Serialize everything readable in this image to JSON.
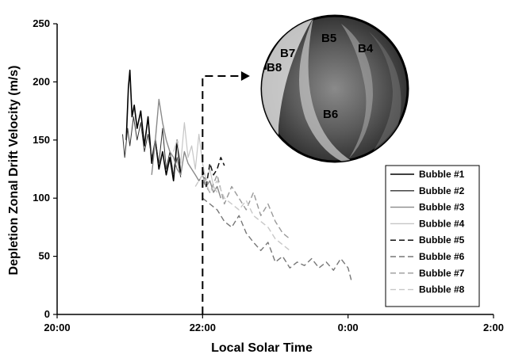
{
  "chart_data": {
    "type": "line",
    "title": "",
    "xlabel": "Local Solar Time",
    "ylabel": "Depletion Zonal Drift Velocity (m/s)",
    "x_unit": "hours",
    "xlim": [
      20,
      26
    ],
    "ylim": [
      0,
      250
    ],
    "x_ticks": [
      {
        "value": 20,
        "label": "20:00"
      },
      {
        "value": 22,
        "label": "22:00"
      },
      {
        "value": 24,
        "label": "0:00"
      },
      {
        "value": 26,
        "label": "2:00"
      }
    ],
    "y_ticks": [
      0,
      50,
      100,
      150,
      200,
      250
    ],
    "legend_position": "right",
    "grid": false,
    "series": [
      {
        "name": "Bubble #1",
        "color": "#000000",
        "dash": "solid",
        "width": 1.6,
        "x": [
          20.95,
          20.98,
          21.0,
          21.03,
          21.06,
          21.1,
          21.15,
          21.2,
          21.25,
          21.3,
          21.35,
          21.4,
          21.45,
          21.5,
          21.55,
          21.6,
          21.65,
          21.7
        ],
        "y": [
          150,
          195,
          210,
          170,
          180,
          160,
          175,
          145,
          170,
          130,
          150,
          125,
          140,
          120,
          135,
          115,
          150,
          120
        ]
      },
      {
        "name": "Bubble #2",
        "color": "#333333",
        "dash": "solid",
        "width": 1.0,
        "x": [
          20.9,
          20.93,
          20.97,
          21.0,
          21.05,
          21.1,
          21.15,
          21.2,
          21.25,
          21.3,
          21.35,
          21.4,
          21.45,
          21.5,
          21.55,
          21.6,
          21.65,
          21.7
        ],
        "y": [
          155,
          135,
          160,
          145,
          170,
          150,
          165,
          140,
          155,
          135,
          150,
          130,
          160,
          125,
          140,
          120,
          135,
          118
        ]
      },
      {
        "name": "Bubble #3",
        "color": "#8a8a8a",
        "dash": "solid",
        "width": 1.4,
        "x": [
          21.3,
          21.35,
          21.4,
          21.45,
          21.5,
          21.55,
          21.6,
          21.65,
          21.7,
          21.75,
          21.8,
          21.85,
          21.9,
          21.95,
          22.0,
          22.05,
          22.1,
          22.15,
          22.2,
          22.25
        ],
        "y": [
          120,
          150,
          185,
          165,
          150,
          140,
          135,
          125,
          120,
          140,
          130,
          125,
          120,
          115,
          120,
          110,
          115,
          105,
          110,
          100
        ]
      },
      {
        "name": "Bubble #4",
        "color": "#c6c6c6",
        "dash": "solid",
        "width": 1.2,
        "x": [
          21.6,
          21.65,
          21.7,
          21.75,
          21.8,
          21.85,
          21.9,
          21.95,
          22.0,
          22.05,
          22.1,
          22.15,
          22.2
        ],
        "y": [
          140,
          150,
          130,
          165,
          135,
          145,
          125,
          155,
          130,
          115,
          125,
          110,
          105
        ]
      },
      {
        "name": "Bubble #5",
        "color": "#111111",
        "dash": "7,4",
        "width": 1.5,
        "x": [
          22.0,
          22.05,
          22.1,
          22.15,
          22.2,
          22.25,
          22.3
        ],
        "y": [
          125,
          110,
          130,
          120,
          125,
          135,
          128
        ]
      },
      {
        "name": "Bubble #6",
        "color": "#777777",
        "dash": "7,4",
        "width": 1.4,
        "x": [
          22.0,
          22.1,
          22.2,
          22.3,
          22.4,
          22.5,
          22.6,
          22.7,
          22.8,
          22.9,
          23.0,
          23.1,
          23.2,
          23.3,
          23.4,
          23.5,
          23.6,
          23.7,
          23.8,
          23.9,
          24.0,
          24.05
        ],
        "y": [
          100,
          95,
          90,
          80,
          75,
          85,
          70,
          62,
          55,
          62,
          45,
          50,
          40,
          45,
          42,
          48,
          40,
          45,
          38,
          48,
          40,
          28
        ]
      },
      {
        "name": "Bubble #7",
        "color": "#999999",
        "dash": "7,4",
        "width": 1.4,
        "x": [
          22.0,
          22.1,
          22.2,
          22.3,
          22.4,
          22.5,
          22.6,
          22.7,
          22.8,
          22.9,
          23.0,
          23.1,
          23.2
        ],
        "y": [
          115,
          105,
          120,
          95,
          110,
          100,
          90,
          105,
          85,
          95,
          80,
          70,
          65
        ]
      },
      {
        "name": "Bubble #8",
        "color": "#c8c8c8",
        "dash": "7,4",
        "width": 1.4,
        "x": [
          21.9,
          22.0,
          22.1,
          22.2,
          22.3,
          22.4,
          22.5,
          22.6,
          22.7,
          22.8,
          22.9,
          23.0,
          23.1,
          23.2
        ],
        "y": [
          110,
          120,
          105,
          115,
          100,
          95,
          90,
          98,
          85,
          80,
          75,
          65,
          60,
          55
        ]
      }
    ],
    "annotation": {
      "arrow": {
        "from": [
          22.0,
          0
        ],
        "corner": [
          22.0,
          205
        ],
        "to": [
          22.65,
          205
        ]
      },
      "sky_image_labels": [
        "B5",
        "B4",
        "B7",
        "B8",
        "B6"
      ]
    }
  }
}
